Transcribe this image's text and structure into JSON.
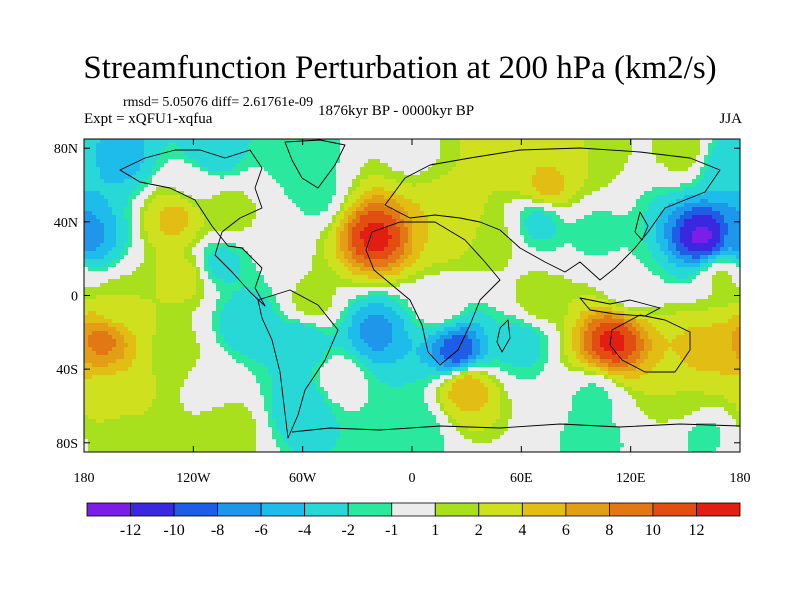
{
  "chart_data": {
    "type": "heatmap",
    "title": "Streamfunction Perturbation at 200 hPa (km2/s)",
    "stats": "rmsd= 5.05076 diff= 2.61761e-09",
    "experiment": "Expt = xQFU1-xqfua",
    "period": "1876kyr BP - 0000kyr BP",
    "season": "JJA",
    "x_ticks": [
      {
        "value": -180,
        "label": "180"
      },
      {
        "value": -120,
        "label": "120W"
      },
      {
        "value": -60,
        "label": "60W"
      },
      {
        "value": 0,
        "label": "0"
      },
      {
        "value": 60,
        "label": "60E"
      },
      {
        "value": 120,
        "label": "120E"
      },
      {
        "value": 180,
        "label": "180"
      }
    ],
    "y_ticks": [
      {
        "value": 80,
        "label": "80N"
      },
      {
        "value": 40,
        "label": "40N"
      },
      {
        "value": 0,
        "label": "0"
      },
      {
        "value": -40,
        "label": "40S"
      },
      {
        "value": -80,
        "label": "80S"
      }
    ],
    "xlim": [
      -180,
      180
    ],
    "ylim": [
      -85,
      85
    ],
    "colorbar": {
      "colors": [
        "#7a1ee8",
        "#3a28e0",
        "#1e5ee6",
        "#1e96ea",
        "#1ebcea",
        "#27d8d6",
        "#2ae89e",
        "#ececec",
        "#a8e01e",
        "#cee01e",
        "#e2be14",
        "#e29e14",
        "#e27814",
        "#e24e12",
        "#e21e12"
      ],
      "labels": [
        "-12",
        "-10",
        "-8",
        "-6",
        "-4",
        "-2",
        "-1",
        "1",
        "2",
        "4",
        "6",
        "8",
        "10",
        "12"
      ]
    },
    "anomalies": [
      {
        "lon": -160,
        "lat": 75,
        "value": -5
      },
      {
        "lon": -110,
        "lat": 78,
        "value": -4
      },
      {
        "lon": -60,
        "lat": 78,
        "value": -2
      },
      {
        "lon": 0,
        "lat": 78,
        "value": 0.5
      },
      {
        "lon": 50,
        "lat": 78,
        "value": 3
      },
      {
        "lon": 75,
        "lat": 60,
        "value": 5
      },
      {
        "lon": 95,
        "lat": 75,
        "value": 2
      },
      {
        "lon": 150,
        "lat": 78,
        "value": 2
      },
      {
        "lon": 170,
        "lat": 72,
        "value": -3
      },
      {
        "lon": -120,
        "lat": 60,
        "value": 0.5
      },
      {
        "lon": -100,
        "lat": 45,
        "value": 2
      },
      {
        "lon": -130,
        "lat": 42,
        "value": 5
      },
      {
        "lon": -178,
        "lat": 32,
        "value": -7
      },
      {
        "lon": -105,
        "lat": 18,
        "value": -3
      },
      {
        "lon": -70,
        "lat": 35,
        "value": 0.5
      },
      {
        "lon": -55,
        "lat": 55,
        "value": -2
      },
      {
        "lon": -20,
        "lat": 32,
        "value": 13
      },
      {
        "lon": 20,
        "lat": 40,
        "value": 4
      },
      {
        "lon": 45,
        "lat": 30,
        "value": 1.5
      },
      {
        "lon": 70,
        "lat": 40,
        "value": -3
      },
      {
        "lon": 100,
        "lat": 35,
        "value": -1.5
      },
      {
        "lon": 160,
        "lat": 32,
        "value": -13
      },
      {
        "lon": 170,
        "lat": 10,
        "value": 1.5
      },
      {
        "lon": 120,
        "lat": 5,
        "value": -1
      },
      {
        "lon": -125,
        "lat": 10,
        "value": 3
      },
      {
        "lon": -160,
        "lat": -5,
        "value": 2
      },
      {
        "lon": -55,
        "lat": -5,
        "value": 2
      },
      {
        "lon": 15,
        "lat": -5,
        "value": 0.5
      },
      {
        "lon": 70,
        "lat": -3,
        "value": 2
      },
      {
        "lon": -170,
        "lat": -25,
        "value": 9
      },
      {
        "lon": -130,
        "lat": -30,
        "value": 1.5
      },
      {
        "lon": -90,
        "lat": -15,
        "value": -4
      },
      {
        "lon": -60,
        "lat": -25,
        "value": -4
      },
      {
        "lon": -20,
        "lat": -20,
        "value": -7
      },
      {
        "lon": 25,
        "lat": -30,
        "value": -10
      },
      {
        "lon": 60,
        "lat": -25,
        "value": -3
      },
      {
        "lon": 110,
        "lat": -25,
        "value": 13
      },
      {
        "lon": 160,
        "lat": -30,
        "value": 5
      },
      {
        "lon": -165,
        "lat": -55,
        "value": 3
      },
      {
        "lon": -110,
        "lat": -50,
        "value": 0.5
      },
      {
        "lon": -60,
        "lat": -60,
        "value": -4
      },
      {
        "lon": -40,
        "lat": -45,
        "value": 0.5
      },
      {
        "lon": 30,
        "lat": -50,
        "value": 6
      },
      {
        "lon": 100,
        "lat": -55,
        "value": -1.5
      },
      {
        "lon": 150,
        "lat": -55,
        "value": 2
      },
      {
        "lon": -160,
        "lat": -75,
        "value": 1.5
      },
      {
        "lon": -100,
        "lat": -72,
        "value": 2
      },
      {
        "lon": 0,
        "lat": -72,
        "value": -2
      },
      {
        "lon": 100,
        "lat": -78,
        "value": -1.5
      },
      {
        "lon": 160,
        "lat": -75,
        "value": -1.5
      }
    ]
  }
}
